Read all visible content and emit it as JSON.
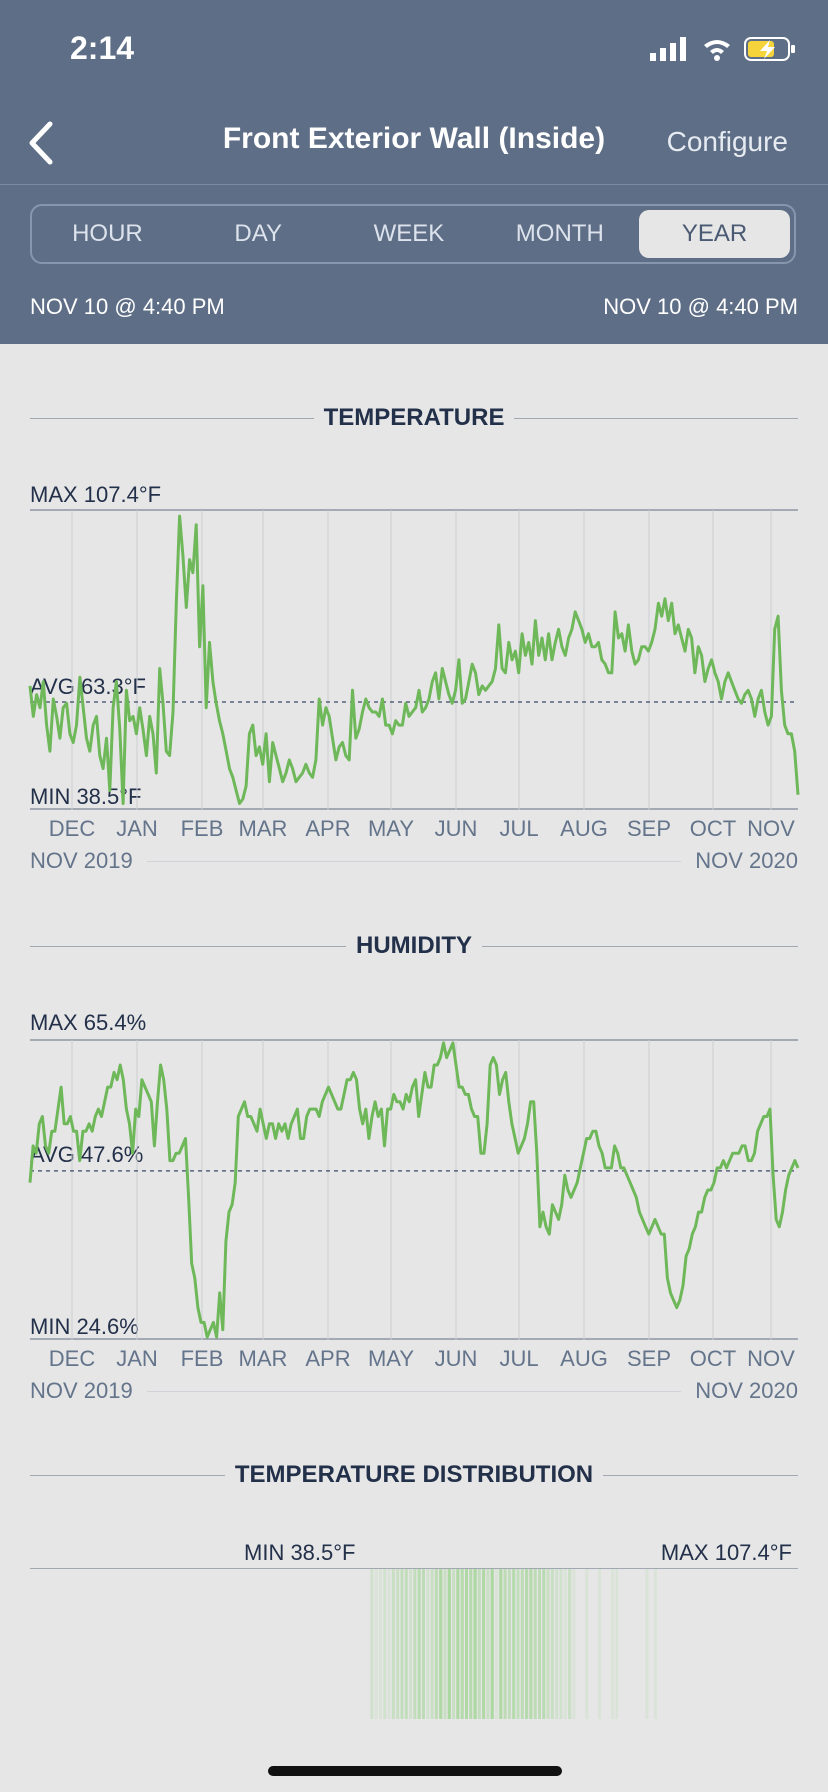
{
  "status": {
    "time": "2:14"
  },
  "nav": {
    "title": "Front Exterior Wall (Inside)",
    "configure": "Configure"
  },
  "tabs": [
    "HOUR",
    "DAY",
    "WEEK",
    "MONTH",
    "YEAR"
  ],
  "active_tab": "YEAR",
  "range": {
    "start": "NOV 10 @ 4:40 PM",
    "end": "NOV 10 @ 4:40 PM"
  },
  "sections": {
    "temperature": "TEMPERATURE",
    "humidity": "HUMIDITY",
    "distribution": "TEMPERATURE DISTRIBUTION"
  },
  "colors": {
    "header": "#5e6e86",
    "line": "#6eb85a"
  },
  "chart_data": [
    {
      "type": "line",
      "title": "TEMPERATURE",
      "max_label": "MAX 107.4°F",
      "avg_label": "AVG 63.3°F",
      "min_label": "MIN 38.5°F",
      "ylim": [
        38.5,
        107.4
      ],
      "avg": 63.3,
      "months": [
        "DEC",
        "JAN",
        "FEB",
        "MAR",
        "APR",
        "MAY",
        "JUN",
        "JUL",
        "AUG",
        "SEP",
        "OCT",
        "NOV"
      ],
      "x_start": "NOV 2019",
      "x_end": "NOV 2020",
      "values": [
        67,
        60,
        65,
        62,
        68,
        58,
        52,
        64,
        60,
        55,
        62,
        63,
        56,
        54,
        58,
        69,
        62,
        55,
        52,
        58,
        60,
        51,
        48,
        55,
        43,
        62,
        68,
        57,
        40,
        66,
        59,
        60,
        56,
        62,
        57,
        51,
        60,
        56,
        47,
        71,
        63,
        52,
        51,
        61,
        86,
        106,
        97,
        85,
        96,
        93,
        104,
        76,
        90,
        62,
        77,
        68,
        63,
        59,
        56,
        52,
        48,
        46,
        43,
        40,
        41,
        44,
        56,
        58,
        51,
        53,
        49,
        56,
        45,
        54,
        51,
        48,
        45,
        47,
        50,
        48,
        45,
        46,
        47,
        49,
        47,
        46,
        50,
        64,
        58,
        62,
        60,
        55,
        50,
        53,
        54,
        51,
        50,
        66,
        55,
        57,
        61,
        64,
        62,
        61,
        61,
        60,
        64,
        58,
        58,
        56,
        59,
        58,
        58,
        63,
        60,
        61,
        62,
        66,
        61,
        62,
        64,
        68,
        70,
        64,
        71,
        68,
        65,
        63,
        66,
        73,
        63,
        64,
        68,
        72,
        70,
        65,
        67,
        66,
        67,
        68,
        71,
        81,
        71,
        70,
        77,
        73,
        75,
        70,
        79,
        74,
        77,
        72,
        82,
        74,
        78,
        73,
        79,
        73,
        77,
        80,
        76,
        74,
        78,
        80,
        84,
        82,
        80,
        77,
        79,
        76,
        76,
        77,
        73,
        72,
        70,
        70,
        84,
        78,
        79,
        75,
        81,
        75,
        72,
        73,
        76,
        76,
        75,
        77,
        80,
        86,
        83,
        87,
        82,
        86,
        79,
        81,
        78,
        75,
        80,
        78,
        70,
        76,
        74,
        68,
        71,
        73,
        70,
        68,
        64,
        68,
        70,
        68,
        66,
        64,
        63,
        65,
        66,
        64,
        60,
        64,
        66,
        61,
        58,
        60,
        80,
        83,
        66,
        58,
        56,
        56,
        52,
        42
      ]
    },
    {
      "type": "line",
      "title": "HUMIDITY",
      "max_label": "MAX 65.4%",
      "avg_label": "AVG 47.6%",
      "min_label": "MIN 24.6%",
      "ylim": [
        24.6,
        65.4
      ],
      "avg": 47.6,
      "months": [
        "DEC",
        "JAN",
        "FEB",
        "MAR",
        "APR",
        "MAY",
        "JUN",
        "JUL",
        "AUG",
        "SEP",
        "OCT",
        "NOV"
      ],
      "x_start": "NOV 2019",
      "x_end": "NOV 2020",
      "values": [
        46,
        51,
        50,
        54,
        55,
        51,
        50,
        53,
        53,
        56,
        59,
        54,
        54,
        55,
        53,
        53,
        49,
        53,
        53,
        54,
        53,
        55,
        56,
        55,
        57,
        59,
        59,
        61,
        60,
        62,
        60,
        56,
        54,
        50,
        56,
        55,
        60,
        59,
        58,
        57,
        51,
        57,
        62,
        60,
        56,
        49,
        49,
        50,
        50,
        51,
        52,
        44,
        35,
        33,
        29,
        27,
        27,
        25,
        26,
        27,
        25,
        31,
        26,
        38,
        42,
        43,
        46,
        55,
        56,
        57,
        55,
        55,
        54,
        53,
        56,
        54,
        52,
        54,
        54,
        52,
        54,
        53,
        54,
        52,
        54,
        55,
        56,
        52,
        52,
        55,
        56,
        56,
        56,
        55,
        57,
        58,
        59,
        58,
        57,
        56,
        56,
        58,
        60,
        60,
        61,
        60,
        56,
        54,
        56,
        52,
        55,
        57,
        55,
        56,
        51,
        56,
        56,
        58,
        57,
        57,
        56,
        58,
        57,
        59,
        60,
        55,
        58,
        61,
        59,
        59,
        62,
        62,
        63,
        65,
        63,
        64,
        65,
        62,
        59,
        59,
        58,
        58,
        56,
        55,
        55,
        50,
        50,
        54,
        62,
        63,
        62,
        58,
        60,
        61,
        57,
        54,
        52,
        50,
        51,
        52,
        54,
        57,
        57,
        50,
        40,
        42,
        40,
        39,
        43,
        42,
        41,
        43,
        47,
        45,
        44,
        45,
        46,
        48,
        50,
        52,
        52,
        53,
        53,
        51,
        50,
        48,
        48,
        48,
        51,
        50,
        48,
        48,
        47,
        46,
        45,
        44,
        42,
        41,
        40,
        39,
        40,
        41,
        40,
        39,
        39,
        33,
        31,
        30,
        29,
        30,
        32,
        36,
        37,
        39,
        40,
        42,
        42,
        44,
        45,
        45,
        46,
        48,
        48,
        49,
        48,
        49,
        50,
        50,
        50,
        51,
        51,
        49,
        49,
        50,
        53,
        54,
        55,
        55,
        56,
        47,
        41,
        40,
        42,
        45,
        47,
        48,
        49,
        48
      ]
    }
  ],
  "distribution": {
    "min_label": "MIN 38.5°F",
    "max_label": "MAX 107.4°F"
  }
}
